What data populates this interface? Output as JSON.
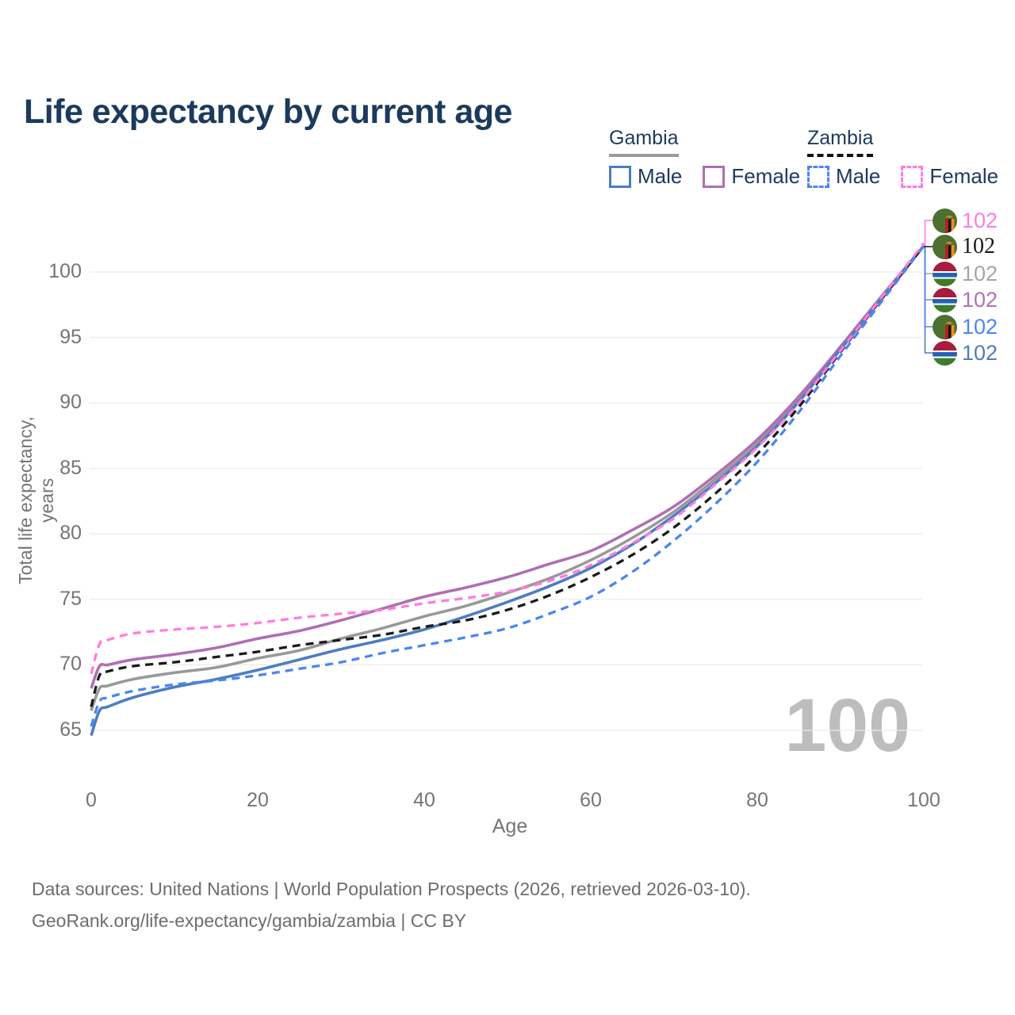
{
  "title": "Life expectancy by current age",
  "legend": {
    "groups": [
      {
        "country": "Gambia",
        "line_style": "solid",
        "line_color": "#9a9a9a",
        "items": [
          {
            "label": "Male",
            "color": "#4d7dc0"
          },
          {
            "label": "Female",
            "color": "#b06fb2"
          }
        ]
      },
      {
        "country": "Zambia",
        "line_style": "dashed",
        "line_color": "#111111",
        "items": [
          {
            "label": "Male",
            "color": "#4a86f0"
          },
          {
            "label": "Female",
            "color": "#ff7de1"
          }
        ]
      }
    ]
  },
  "axes": {
    "y": {
      "label": "Total life expectancy, years",
      "ticks": [
        "100",
        "95",
        "90",
        "85",
        "80",
        "75",
        "70",
        "65"
      ],
      "values": [
        100,
        95,
        90,
        85,
        80,
        75,
        70,
        65
      ]
    },
    "x": {
      "label": "Age",
      "ticks": [
        "0",
        "20",
        "40",
        "60",
        "80",
        "100"
      ],
      "values": [
        0,
        20,
        40,
        60,
        80,
        100
      ]
    }
  },
  "watermark": "100",
  "end_labels": [
    {
      "flag": "zambia",
      "value": "102",
      "color": "#ff7de1",
      "series": "Zambia Female"
    },
    {
      "flag": "zambia",
      "value": "102",
      "color": "#1a1a1a",
      "series": "Zambia"
    },
    {
      "flag": "gambia",
      "value": "102",
      "color": "#a6a6a6",
      "series": "Gambia"
    },
    {
      "flag": "gambia",
      "value": "102",
      "color": "#b173b1",
      "series": "Gambia Female"
    },
    {
      "flag": "zambia",
      "value": "102",
      "color": "#4a86f0",
      "series": "Zambia Male"
    },
    {
      "flag": "gambia",
      "value": "102",
      "color": "#4d7dc0",
      "series": "Gambia Male"
    }
  ],
  "footer": {
    "line1": "Data sources: United Nations | World Population Prospects (2026, retrieved 2026-03-10).",
    "line2": "GeoRank.org/life-expectancy/gambia/zambia | CC BY"
  },
  "chart_data": {
    "type": "line",
    "title": "Life expectancy by current age",
    "xlabel": "Age",
    "ylabel": "Total life expectancy, years",
    "xlim": [
      0,
      100
    ],
    "ylim": [
      63,
      103
    ],
    "grid": "horizontal",
    "legend_position": "top-right",
    "x": [
      0,
      1,
      2,
      5,
      10,
      15,
      20,
      25,
      30,
      35,
      40,
      45,
      50,
      55,
      60,
      65,
      70,
      75,
      80,
      85,
      90,
      95,
      100
    ],
    "series": [
      {
        "name": "Gambia Male",
        "color": "#4d7dc0",
        "style": "solid",
        "values": [
          64.6,
          66.5,
          66.8,
          67.5,
          68.3,
          68.9,
          69.6,
          70.4,
          71.2,
          71.9,
          72.7,
          73.7,
          74.8,
          76.0,
          77.4,
          79.2,
          81.4,
          83.9,
          86.7,
          90.1,
          94.1,
          98.0,
          102.0
        ]
      },
      {
        "name": "Gambia Female",
        "color": "#b06fb2",
        "style": "solid",
        "values": [
          68.2,
          69.9,
          70.0,
          70.4,
          70.8,
          71.3,
          72.0,
          72.6,
          73.4,
          74.3,
          75.2,
          75.9,
          76.7,
          77.7,
          78.7,
          80.3,
          82.1,
          84.5,
          87.2,
          90.5,
          94.3,
          98.2,
          102.0
        ]
      },
      {
        "name": "Gambia",
        "color": "#999999",
        "style": "solid",
        "values": [
          66.5,
          68.2,
          68.4,
          68.9,
          69.4,
          69.8,
          70.5,
          71.1,
          72.0,
          72.8,
          73.7,
          74.5,
          75.5,
          76.6,
          78.0,
          79.7,
          81.7,
          84.2,
          86.9,
          90.3,
          94.2,
          98.1,
          102.0
        ]
      },
      {
        "name": "Zambia Male",
        "color": "#4a86f0",
        "style": "dashed",
        "values": [
          65.3,
          67.2,
          67.5,
          68.0,
          68.5,
          68.8,
          69.2,
          69.7,
          70.2,
          70.9,
          71.5,
          72.1,
          72.8,
          73.9,
          75.2,
          77.1,
          79.5,
          82.3,
          85.5,
          89.3,
          93.6,
          97.8,
          102.0
        ]
      },
      {
        "name": "Zambia Female",
        "color": "#ff7de1",
        "style": "dashed",
        "values": [
          69.3,
          71.6,
          71.9,
          72.4,
          72.7,
          72.9,
          73.2,
          73.6,
          73.9,
          74.2,
          74.7,
          75.1,
          75.6,
          76.4,
          77.6,
          79.3,
          81.2,
          83.8,
          86.6,
          90.0,
          94.0,
          98.1,
          102.2
        ]
      },
      {
        "name": "Zambia",
        "color": "#1a1a1a",
        "style": "dashed",
        "values": [
          66.8,
          69.2,
          69.5,
          69.9,
          70.2,
          70.6,
          71.0,
          71.5,
          71.9,
          72.3,
          72.9,
          73.4,
          74.2,
          75.3,
          76.7,
          78.4,
          80.5,
          83.1,
          86.1,
          89.7,
          93.9,
          98.0,
          102.0
        ]
      }
    ]
  }
}
